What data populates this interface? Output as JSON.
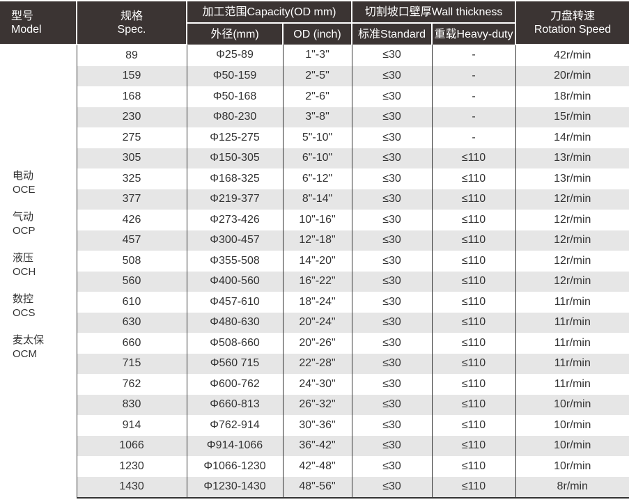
{
  "header": {
    "model_cn": "型号",
    "model_en": "Model",
    "spec_cn": "规格",
    "spec_en": "Spec.",
    "capacity": "加工范围Capacity(OD mm)",
    "od_mm": "外径(mm)",
    "od_inch": "OD (inch)",
    "wall": "切割坡口壁厚Wall thickness",
    "standard": "标准Standard",
    "heavy": "重载Heavy-duty",
    "speed_cn": "刀盘转速",
    "speed_en": "Rotation Speed"
  },
  "models": [
    {
      "cn": "电动",
      "en": "OCE"
    },
    {
      "cn": "气动",
      "en": "OCP"
    },
    {
      "cn": "液压",
      "en": "OCH"
    },
    {
      "cn": "数控",
      "en": "OCS"
    },
    {
      "cn": "麦太保",
      "en": "OCM"
    }
  ],
  "rows": [
    [
      "89",
      "Φ25-89",
      "1\"-3\"",
      "≤30",
      "-",
      "42r/min"
    ],
    [
      "159",
      "Φ50-159",
      "2\"-5\"",
      "≤30",
      "-",
      "20r/min"
    ],
    [
      "168",
      "Φ50-168",
      "2\"-6\"",
      "≤30",
      "-",
      "18r/min"
    ],
    [
      "230",
      "Φ80-230",
      "3\"-8\"",
      "≤30",
      "-",
      "15r/min"
    ],
    [
      "275",
      "Φ125-275",
      "5\"-10\"",
      "≤30",
      "-",
      "14r/min"
    ],
    [
      "305",
      "Φ150-305",
      "6\"-10\"",
      "≤30",
      "≤110",
      "13r/min"
    ],
    [
      "325",
      "Φ168-325",
      "6\"-12\"",
      "≤30",
      "≤110",
      "13r/min"
    ],
    [
      "377",
      "Φ219-377",
      "8\"-14\"",
      "≤30",
      "≤110",
      "12r/min"
    ],
    [
      "426",
      "Φ273-426",
      "10\"-16\"",
      "≤30",
      "≤110",
      "12r/min"
    ],
    [
      "457",
      "Φ300-457",
      "12\"-18\"",
      "≤30",
      "≤110",
      "12r/min"
    ],
    [
      "508",
      "Φ355-508",
      "14\"-20\"",
      "≤30",
      "≤110",
      "12r/min"
    ],
    [
      "560",
      "Φ400-560",
      "16\"-22\"",
      "≤30",
      "≤110",
      "12r/min"
    ],
    [
      "610",
      "Φ457-610",
      "18\"-24\"",
      "≤30",
      "≤110",
      "11r/min"
    ],
    [
      "630",
      "Φ480-630",
      "20\"-24\"",
      "≤30",
      "≤110",
      "11r/min"
    ],
    [
      "660",
      "Φ508-660",
      "20\"-26\"",
      "≤30",
      "≤110",
      "11r/min"
    ],
    [
      "715",
      "Φ560 715",
      "22\"-28\"",
      "≤30",
      "≤110",
      "11r/min"
    ],
    [
      "762",
      "Φ600-762",
      "24\"-30\"",
      "≤30",
      "≤110",
      "11r/min"
    ],
    [
      "830",
      "Φ660-813",
      "26\"-32\"",
      "≤30",
      "≤110",
      "10r/min"
    ],
    [
      "914",
      "Φ762-914",
      "30\"-36\"",
      "≤30",
      "≤110",
      "10r/min"
    ],
    [
      "1066",
      "Φ914-1066",
      "36\"-42\"",
      "≤30",
      "≤110",
      "10r/min"
    ],
    [
      "1230",
      "Φ1066-1230",
      "42\"-48\"",
      "≤30",
      "≤110",
      "10r/min"
    ],
    [
      "1430",
      "Φ1230-1430",
      "48\"-56\"",
      "≤30",
      "≤110",
      "8r/min"
    ]
  ]
}
